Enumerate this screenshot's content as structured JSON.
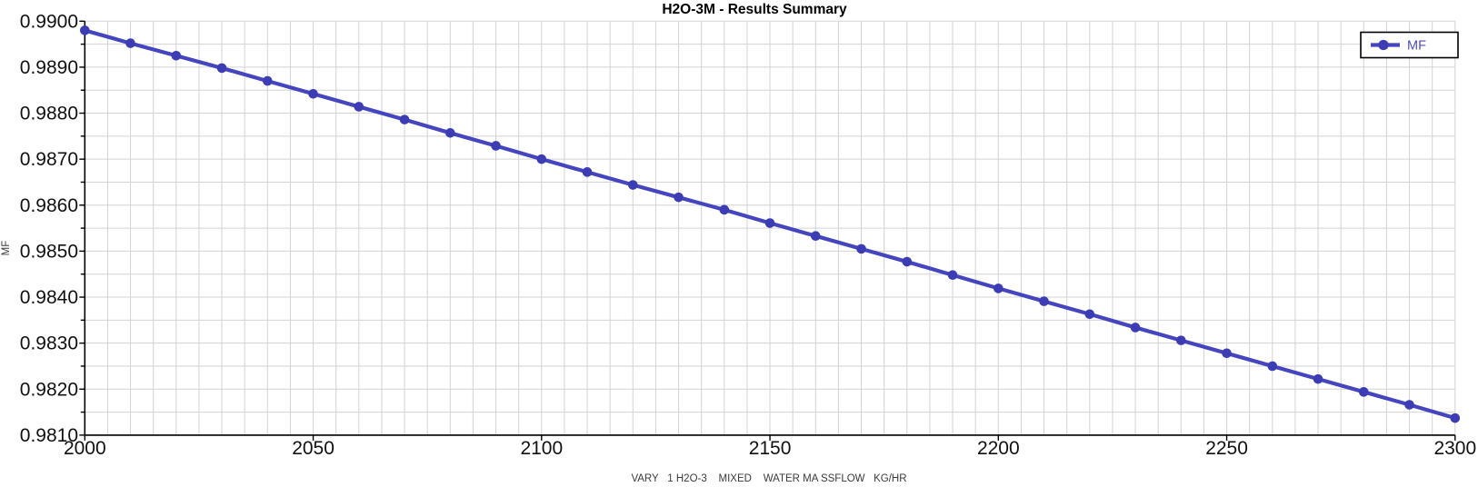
{
  "window": {
    "background": "#ffffff"
  },
  "chart": {
    "title": "H2O-3M - Results Summary",
    "legend": {
      "label": "MF"
    },
    "y_axis_label": "MF",
    "x_axis_label": "VARY   1 H2O-3    MIXED    WATER MA SSFLOW   KG/HR",
    "x_tick_labels": [
      "2000",
      "2050",
      "2100",
      "2150",
      "2200",
      "2250",
      "2300"
    ],
    "y_tick_labels": [
      "0.9900",
      "0.9890",
      "0.9880",
      "0.9870",
      "0.9860",
      "0.9850",
      "0.9840",
      "0.9830",
      "0.9820",
      "0.9810"
    ],
    "colors": {
      "series_line": "#4545c0",
      "series_marker": "#3c3cb4",
      "legend_text": "#4b4bc8",
      "grid": "#d3d3d3",
      "axis": "#000000",
      "tick_text": "#111111",
      "title_text": "#000000",
      "caption_text": "#3a3a3a",
      "legend_border": "#000000",
      "legend_fill": "#ffffff"
    }
  },
  "chart_data": {
    "type": "line",
    "title": "H2O-3M - Results Summary",
    "xlabel": "VARY 1 H2O-3 MIXED WATER MA SSFLOW KG/HR",
    "ylabel": "MF",
    "xlim": [
      2000,
      2300
    ],
    "ylim": [
      0.981,
      0.99
    ],
    "x_major_tick": 50,
    "x_minor_grid": 5,
    "y_major_tick": 0.001,
    "y_minor_grid": 0.0005,
    "grid": true,
    "legend_position": "top-right",
    "marker": "circle",
    "series": [
      {
        "name": "MF",
        "x": [
          2000,
          2010,
          2020,
          2030,
          2040,
          2050,
          2060,
          2070,
          2080,
          2090,
          2100,
          2110,
          2120,
          2130,
          2140,
          2150,
          2160,
          2170,
          2180,
          2190,
          2200,
          2210,
          2220,
          2230,
          2240,
          2250,
          2260,
          2270,
          2280,
          2290,
          2300
        ],
        "y": [
          0.9898,
          0.98952,
          0.98925,
          0.98898,
          0.9887,
          0.98842,
          0.98814,
          0.98786,
          0.98757,
          0.98729,
          0.987,
          0.98672,
          0.98644,
          0.98617,
          0.9859,
          0.98561,
          0.98533,
          0.98505,
          0.98477,
          0.98448,
          0.98419,
          0.98391,
          0.98363,
          0.98334,
          0.98306,
          0.98278,
          0.9825,
          0.98222,
          0.98194,
          0.98166,
          0.98137
        ]
      }
    ]
  }
}
